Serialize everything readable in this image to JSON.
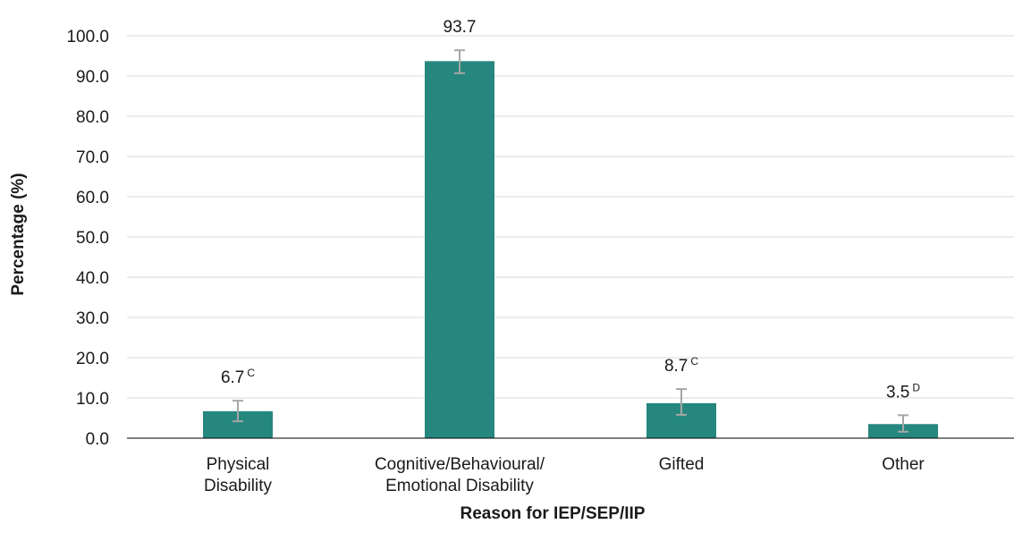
{
  "chart_data": {
    "type": "bar",
    "title": "",
    "xlabel": "Reason for IEP/SEP/IIP",
    "ylabel": "Percentage (%)",
    "ylim": [
      0,
      100
    ],
    "yticks": [
      "0.0",
      "10.0",
      "20.0",
      "30.0",
      "40.0",
      "50.0",
      "60.0",
      "70.0",
      "80.0",
      "90.0",
      "100.0"
    ],
    "grid": true,
    "categories": [
      [
        "Physical",
        "Disability"
      ],
      [
        "Cognitive/Behavioural/",
        "Emotional Disability"
      ],
      [
        "Gifted"
      ],
      [
        "Other"
      ]
    ],
    "values": [
      6.7,
      93.7,
      8.7,
      3.5
    ],
    "value_labels": [
      "6.7",
      "93.7",
      "8.7",
      "3.5"
    ],
    "quality_flags": [
      "C",
      "",
      "C",
      "D"
    ],
    "error_bars": [
      [
        4.2,
        9.3
      ],
      [
        90.7,
        96.4
      ],
      [
        5.8,
        12.2
      ],
      [
        1.6,
        5.7
      ]
    ],
    "bar_color": "#26877f",
    "error_bar_color": "#a6a6a6",
    "grid_color": "#d9d9d9"
  }
}
